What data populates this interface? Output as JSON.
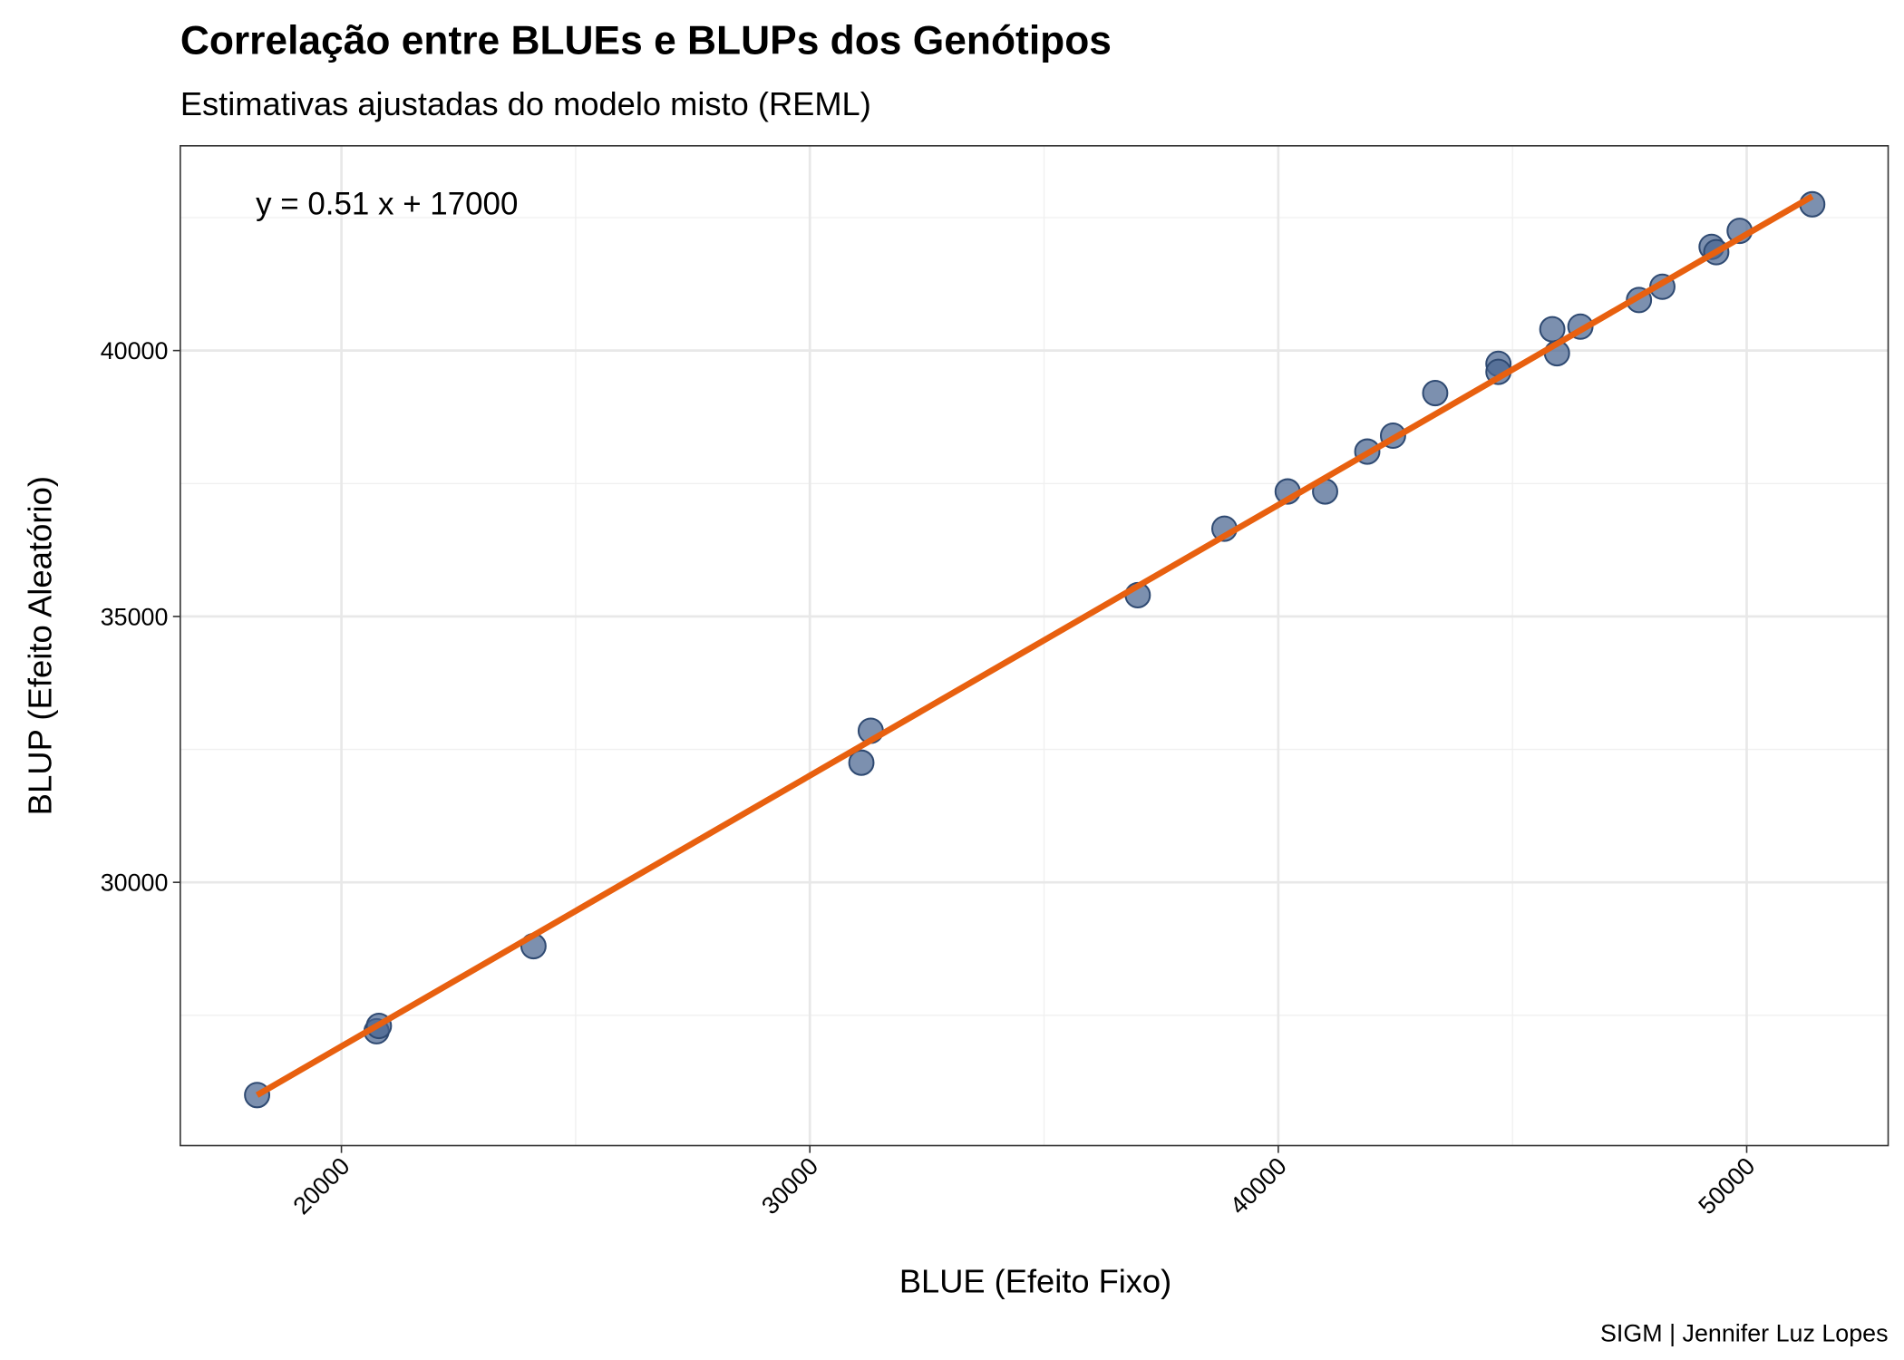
{
  "chart_data": {
    "type": "scatter",
    "title": "Correlação entre BLUEs e BLUPs dos Genótipos",
    "subtitle": "Estimativas ajustadas do modelo misto (REML)",
    "xlabel": "BLUE (Efeito Fixo)",
    "ylabel": "BLUP (Efeito Aleatório)",
    "caption": "SIGM | Jennifer Luz Lopes",
    "annotation": "y = 0.51 x + 17000",
    "x": [
      18200,
      20750,
      20800,
      24100,
      31100,
      31300,
      37000,
      38850,
      40200,
      41000,
      41900,
      42450,
      43350,
      44700,
      44700,
      45850,
      45950,
      46450,
      47700,
      48200,
      49250,
      49350,
      49850,
      51400
    ],
    "values": [
      26000,
      27200,
      27300,
      28800,
      32250,
      32850,
      35400,
      36650,
      37350,
      37350,
      38100,
      38400,
      39200,
      39750,
      39600,
      40400,
      39950,
      40450,
      40950,
      41200,
      41950,
      41850,
      42250,
      42750
    ],
    "color": "#4a6590",
    "fit_line": {
      "color": "#e8600f",
      "x": [
        18200,
        51400
      ],
      "y": [
        26000,
        42900
      ]
    },
    "xlim": [
      16560,
      53020
    ],
    "ylim": [
      25050,
      43850
    ],
    "xticks": [
      20000,
      30000,
      40000,
      50000
    ],
    "yticks": [
      30000,
      35000,
      40000
    ],
    "x_minor_ticks": [
      25000,
      35000,
      45000
    ],
    "y_minor_ticks": [
      27500,
      32500,
      37500,
      42500
    ],
    "grid": true
  }
}
